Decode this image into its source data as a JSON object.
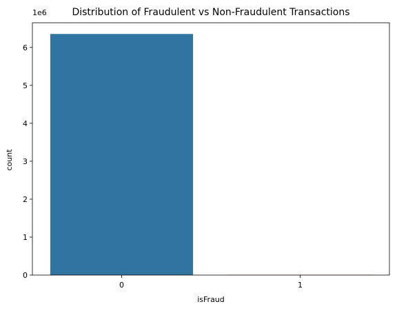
{
  "chart_data": {
    "type": "bar",
    "title": "Distribution of Fraudulent vs Non-Fraudulent Transactions",
    "xlabel": "isFraud",
    "ylabel": "count",
    "y_offset_label": "1e6",
    "y_scale": 1000000,
    "categories": [
      "0",
      "1"
    ],
    "values": [
      6354407,
      8213
    ],
    "ylim": [
      0,
      6650000
    ],
    "yticks": [
      0,
      1000000,
      2000000,
      3000000,
      4000000,
      5000000,
      6000000
    ],
    "ytick_labels": [
      "0",
      "1",
      "2",
      "3",
      "4",
      "5",
      "6"
    ],
    "grid": false,
    "legend": "none",
    "colors": [
      "#3274a1",
      "#e1812c"
    ]
  }
}
